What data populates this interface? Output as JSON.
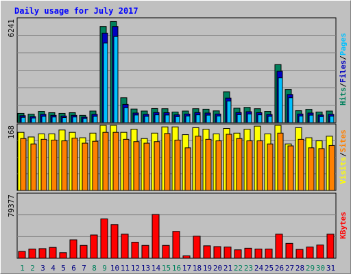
{
  "title": "Daily usage for July 2017",
  "colors": {
    "hits": "#00805c",
    "files": "#00c0ff",
    "pages": "#00c0ff",
    "visits": "#ffff00",
    "sites": "#ff8000",
    "kbytes": "#ff0000",
    "title": "#0000ff",
    "weekend": "#00805c",
    "weekday": "#000080"
  },
  "chart_data": [
    {
      "type": "bar",
      "title": "Daily usage for July 2017",
      "ylabel_max": "6241",
      "ylim": [
        0,
        6241
      ],
      "legend": [
        {
          "name": "Pages",
          "color": "#00c0ff"
        },
        {
          "name": "Files",
          "color": "#0000c0"
        },
        {
          "name": "Hits",
          "color": "#00805c"
        }
      ],
      "categories": [
        "1",
        "2",
        "3",
        "4",
        "5",
        "6",
        "7",
        "8",
        "9",
        "10",
        "11",
        "12",
        "13",
        "14",
        "15",
        "16",
        "17",
        "18",
        "19",
        "20",
        "21",
        "22",
        "23",
        "24",
        "25",
        "26",
        "27",
        "28",
        "29",
        "30",
        "31"
      ],
      "weekend_days": [
        1,
        2,
        8,
        9,
        15,
        16,
        22,
        23,
        29,
        30
      ],
      "series": [
        {
          "name": "Hits",
          "values": [
            560,
            510,
            680,
            600,
            560,
            600,
            440,
            700,
            5800,
            6100,
            1500,
            820,
            700,
            850,
            840,
            640,
            700,
            840,
            810,
            710,
            1860,
            870,
            920,
            840,
            680,
            3500,
            2000,
            720,
            800,
            640,
            700
          ]
        },
        {
          "name": "Files",
          "values": [
            420,
            360,
            500,
            440,
            400,
            440,
            330,
            500,
            5400,
            5800,
            1100,
            580,
            500,
            610,
            600,
            470,
            520,
            610,
            580,
            520,
            1480,
            610,
            660,
            600,
            490,
            3100,
            1700,
            520,
            580,
            460,
            500
          ]
        },
        {
          "name": "Pages",
          "values": [
            320,
            280,
            380,
            340,
            310,
            340,
            250,
            380,
            4800,
            5200,
            900,
            460,
            380,
            470,
            460,
            360,
            400,
            470,
            450,
            400,
            1300,
            480,
            520,
            470,
            380,
            2700,
            1500,
            400,
            450,
            360,
            390
          ]
        }
      ]
    },
    {
      "type": "bar",
      "ylabel_max": "168",
      "ylim": [
        0,
        168
      ],
      "legend": [
        {
          "name": "Sites",
          "color": "#ff8000"
        },
        {
          "name": "Visits",
          "color": "#ffff00"
        }
      ],
      "series": [
        {
          "name": "Visits",
          "values": [
            150,
            138,
            146,
            146,
            156,
            150,
            136,
            148,
            168,
            168,
            150,
            158,
            134,
            148,
            164,
            164,
            144,
            162,
            158,
            146,
            160,
            148,
            158,
            166,
            146,
            168,
            120,
            162,
            136,
            128,
            140
          ]
        },
        {
          "name": "Sites",
          "values": [
            134,
            120,
            132,
            130,
            128,
            135,
            122,
            127,
            150,
            150,
            132,
            126,
            122,
            126,
            147,
            130,
            110,
            140,
            132,
            128,
            145,
            134,
            128,
            128,
            120,
            148,
            115,
            132,
            110,
            108,
            116
          ]
        }
      ]
    },
    {
      "type": "bar",
      "ylabel_max": "79377",
      "ylim": [
        0,
        79377
      ],
      "legend": [
        {
          "name": "KBytes",
          "color": "#ff0000"
        }
      ],
      "series": [
        {
          "name": "KBytes",
          "values": [
            8500,
            11500,
            12000,
            13500,
            7000,
            23000,
            16000,
            29000,
            49000,
            42000,
            30000,
            20000,
            16000,
            54500,
            16000,
            33500,
            3000,
            27500,
            15500,
            14500,
            14000,
            10500,
            12500,
            11500,
            11500,
            30000,
            18500,
            11000,
            14000,
            16500,
            30000
          ]
        }
      ]
    }
  ]
}
